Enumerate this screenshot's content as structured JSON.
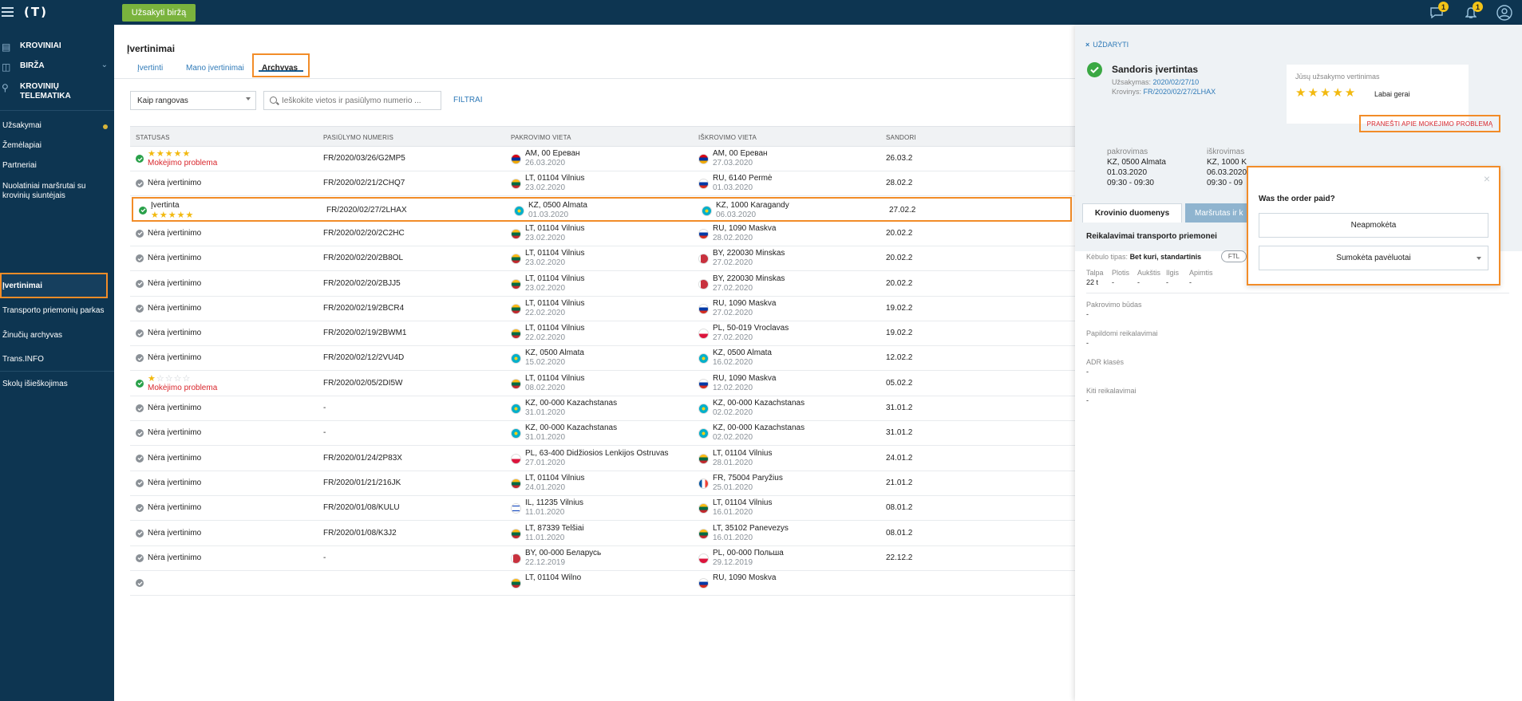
{
  "topbar": {
    "logo": "(T)",
    "order_button": "Užsakyti biržą",
    "messages_badge": "1",
    "notifications_badge": "1"
  },
  "sidebar": {
    "big_items": [
      {
        "label": "KROVINIAI"
      },
      {
        "label": "BIRŽA"
      },
      {
        "label_line1": "KROVINIŲ",
        "label_line2": "TELEMATIKA"
      }
    ],
    "items": [
      {
        "label": "Užsakymai"
      },
      {
        "label": "Žemėlapiai"
      },
      {
        "label": "Partneriai"
      },
      {
        "label_line1": "Nuolatiniai maršrutai su",
        "label_line2": "krovinių siuntėjais"
      },
      {
        "label": "Įvertinimai"
      },
      {
        "label": "Transporto priemonių parkas"
      },
      {
        "label": "Žinučių archyvas"
      },
      {
        "label": "Trans.INFO"
      },
      {
        "label": "Skolų išieškojimas"
      }
    ]
  },
  "main": {
    "title": "Įvertinimai",
    "tabs": [
      {
        "label": "Įvertinti"
      },
      {
        "label": "Mano įvertinimai"
      },
      {
        "label": "Archyvas"
      }
    ],
    "filter_select": "Kaip rangovas",
    "search_placeholder": "Ieškokite vietos ir pasiūlymo numerio ...",
    "filter_link": "FILTRAI",
    "columns": [
      "STATUSAS",
      "PASIŪLYMO NUMERIS",
      "PAKROVIMO VIETA",
      "IŠKROVIMO VIETA",
      "SANDORI"
    ]
  },
  "rows": [
    {
      "stars": 5,
      "status": "",
      "status_red": "Mokėjimo problema",
      "number": "FR/2020/03/26/G2MP5",
      "load_flag": "am",
      "load": "AM, 00 Ереван",
      "load_date": "26.03.2020",
      "unload_flag": "am",
      "unload": "AM, 00 Ереван",
      "unload_date": "27.03.2020",
      "deal": "26.03.2"
    },
    {
      "stars": 0,
      "status": "Nėra įvertinimo",
      "status_red": "",
      "number": "FR/2020/02/21/2CHQ7",
      "load_flag": "lt",
      "load": "LT, 01104 Vilnius",
      "load_date": "23.02.2020",
      "unload_flag": "ru",
      "unload": "RU, 6140 Permė",
      "unload_date": "01.03.2020",
      "deal": "28.02.2"
    },
    {
      "stars": 5,
      "status": "Įvertinta",
      "status_red": "",
      "number": "FR/2020/02/27/2LHAX",
      "load_flag": "kz",
      "load": "KZ, 0500 Almata",
      "load_date": "01.03.2020",
      "unload_flag": "kz",
      "unload": "KZ, 1000 Karagandy",
      "unload_date": "06.03.2020",
      "deal": "27.02.2"
    },
    {
      "stars": 0,
      "status": "Nėra įvertinimo",
      "status_red": "",
      "number": "FR/2020/02/20/2C2HC",
      "load_flag": "lt",
      "load": "LT, 01104 Vilnius",
      "load_date": "23.02.2020",
      "unload_flag": "ru",
      "unload": "RU, 1090 Maskva",
      "unload_date": "28.02.2020",
      "deal": "20.02.2"
    },
    {
      "stars": 0,
      "status": "Nėra įvertinimo",
      "status_red": "",
      "number": "FR/2020/02/20/2B8OL",
      "load_flag": "lt",
      "load": "LT, 01104 Vilnius",
      "load_date": "23.02.2020",
      "unload_flag": "by",
      "unload": "BY, 220030 Minskas",
      "unload_date": "27.02.2020",
      "deal": "20.02.2"
    },
    {
      "stars": 0,
      "status": "Nėra įvertinimo",
      "status_red": "",
      "number": "FR/2020/02/20/2BJJ5",
      "load_flag": "lt",
      "load": "LT, 01104 Vilnius",
      "load_date": "23.02.2020",
      "unload_flag": "by",
      "unload": "BY, 220030 Minskas",
      "unload_date": "27.02.2020",
      "deal": "20.02.2"
    },
    {
      "stars": 0,
      "status": "Nėra įvertinimo",
      "status_red": "",
      "number": "FR/2020/02/19/2BCR4",
      "load_flag": "lt",
      "load": "LT, 01104 Vilnius",
      "load_date": "22.02.2020",
      "unload_flag": "ru",
      "unload": "RU, 1090 Maskva",
      "unload_date": "27.02.2020",
      "deal": "19.02.2"
    },
    {
      "stars": 0,
      "status": "Nėra įvertinimo",
      "status_red": "",
      "number": "FR/2020/02/19/2BWM1",
      "load_flag": "lt",
      "load": "LT, 01104 Vilnius",
      "load_date": "22.02.2020",
      "unload_flag": "pl",
      "unload": "PL, 50-019 Vroclavas",
      "unload_date": "27.02.2020",
      "deal": "19.02.2"
    },
    {
      "stars": 0,
      "status": "Nėra įvertinimo",
      "status_red": "",
      "number": "FR/2020/02/12/2VU4D",
      "load_flag": "kz",
      "load": "KZ, 0500 Almata",
      "load_date": "15.02.2020",
      "unload_flag": "kz",
      "unload": "KZ, 0500 Almata",
      "unload_date": "16.02.2020",
      "deal": "12.02.2"
    },
    {
      "stars": 1,
      "status": "",
      "status_red": "Mokėjimo problema",
      "number": "FR/2020/02/05/2DI5W",
      "load_flag": "lt",
      "load": "LT, 01104 Vilnius",
      "load_date": "08.02.2020",
      "unload_flag": "ru",
      "unload": "RU, 1090 Maskva",
      "unload_date": "12.02.2020",
      "deal": "05.02.2"
    },
    {
      "stars": 0,
      "status": "Nėra įvertinimo",
      "status_red": "",
      "number": "-",
      "load_flag": "kz",
      "load": "KZ, 00-000 Kazachstanas",
      "load_date": "31.01.2020",
      "unload_flag": "kz",
      "unload": "KZ, 00-000 Kazachstanas",
      "unload_date": "02.02.2020",
      "deal": "31.01.2"
    },
    {
      "stars": 0,
      "status": "Nėra įvertinimo",
      "status_red": "",
      "number": "-",
      "load_flag": "kz",
      "load": "KZ, 00-000 Kazachstanas",
      "load_date": "31.01.2020",
      "unload_flag": "kz",
      "unload": "KZ, 00-000 Kazachstanas",
      "unload_date": "02.02.2020",
      "deal": "31.01.2"
    },
    {
      "stars": 0,
      "status": "Nėra įvertinimo",
      "status_red": "",
      "number": "FR/2020/01/24/2P83X",
      "load_flag": "pl",
      "load": "PL, 63-400 Didžiosios Lenkijos Ostruvas",
      "load_date": "27.01.2020",
      "unload_flag": "lt",
      "unload": "LT, 01104 Vilnius",
      "unload_date": "28.01.2020",
      "deal": "24.01.2"
    },
    {
      "stars": 0,
      "status": "Nėra įvertinimo",
      "status_red": "",
      "number": "FR/2020/01/21/216JK",
      "load_flag": "lt",
      "load": "LT, 01104 Vilnius",
      "load_date": "24.01.2020",
      "unload_flag": "fr",
      "unload": "FR, 75004 Paryžius",
      "unload_date": "25.01.2020",
      "deal": "21.01.2"
    },
    {
      "stars": 0,
      "status": "Nėra įvertinimo",
      "status_red": "",
      "number": "FR/2020/01/08/KULU",
      "load_flag": "il",
      "load": "IL, 11235 Vilnius",
      "load_date": "11.01.2020",
      "unload_flag": "lt",
      "unload": "LT, 01104 Vilnius",
      "unload_date": "16.01.2020",
      "deal": "08.01.2"
    },
    {
      "stars": 0,
      "status": "Nėra įvertinimo",
      "status_red": "",
      "number": "FR/2020/01/08/K3J2",
      "load_flag": "lt",
      "load": "LT, 87339 Telšiai",
      "load_date": "11.01.2020",
      "unload_flag": "lt",
      "unload": "LT, 35102 Panevezys",
      "unload_date": "16.01.2020",
      "deal": "08.01.2"
    },
    {
      "stars": 0,
      "status": "Nėra įvertinimo",
      "status_red": "",
      "number": "-",
      "load_flag": "by",
      "load": "BY, 00-000 Беларусь",
      "load_date": "22.12.2019",
      "unload_flag": "pl",
      "unload": "PL, 00-000 Польша",
      "unload_date": "29.12.2019",
      "deal": "22.12.2"
    },
    {
      "stars": 0,
      "status": "",
      "status_red": "",
      "number": "",
      "load_flag": "lt",
      "load": "LT, 01104 Wilno",
      "load_date": "",
      "unload_flag": "ru",
      "unload": "RU, 1090 Moskva",
      "unload_date": "",
      "deal": ""
    }
  ],
  "panel": {
    "close_label": "UŽDARYTI",
    "deal_title": "Sandoris įvertintas",
    "order_label": "Užsakymas:",
    "order_value": "2020/02/27/10",
    "cargo_label": "Krovinys:",
    "cargo_value": "FR/2020/02/27/2LHAX",
    "rating_title": "Jūsų užsakymo vertinimas",
    "rating_stars": "★★★★★",
    "rating_label": "Labai gerai",
    "report_link": "PRANEŠTI APIE MOKĖJIMO PROBLEMĄ",
    "load": {
      "heading": "pakrovimas",
      "place": "KZ, 0500 Almata",
      "date": "01.03.2020",
      "time": "09:30 - 09:30"
    },
    "unload": {
      "heading": "iškrovimas",
      "place": "KZ, 1000 K",
      "date": "06.03.2020",
      "time": "09:30 - 09"
    },
    "tabs": [
      "Krovinio duomenys",
      "Maršrutas ir k"
    ],
    "section_title": "Reikalavimai transporto priemonei",
    "body_type_label": "Kėbulo tipas:",
    "body_type_value": "Bet kuri, standartinis",
    "ftl": "FTL",
    "dims": [
      {
        "label": "Talpa",
        "value": "22 t"
      },
      {
        "label": "Plotis",
        "value": "-"
      },
      {
        "label": "Aukštis",
        "value": "-"
      },
      {
        "label": "Ilgis",
        "value": "-"
      },
      {
        "label": "Apimtis",
        "value": "-"
      }
    ],
    "fields": [
      {
        "label": "Pakrovimo būdas",
        "value": "-"
      },
      {
        "label": "Papildomi reikalavimai",
        "value": "-"
      },
      {
        "label": "ADR klasės",
        "value": "-"
      },
      {
        "label": "Kiti reikalavimai",
        "value": "-"
      }
    ]
  },
  "popup": {
    "question": "Was the order paid?",
    "option_unpaid": "Neapmokėta",
    "option_late": "Sumokėta pavėluotai"
  }
}
